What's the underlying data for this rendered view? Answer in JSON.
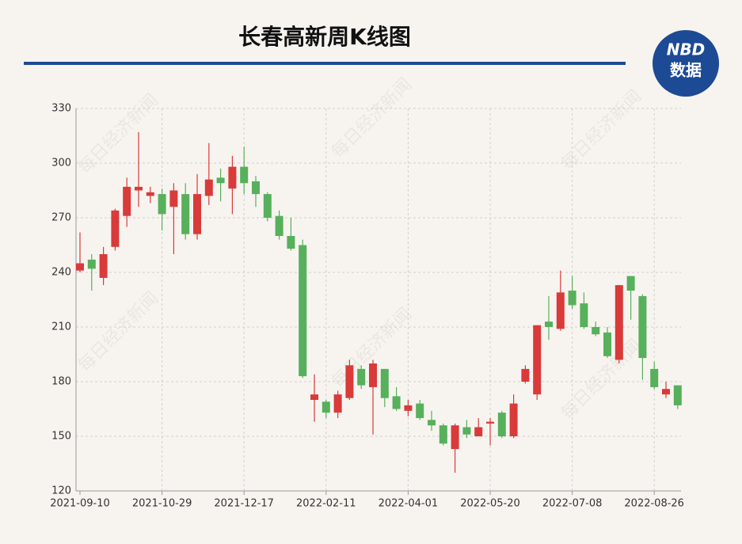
{
  "chart_data": {
    "type": "candlestick",
    "title": "长春高新周K线图",
    "logo": {
      "brand": "NBD",
      "label": "数据"
    },
    "watermark": "每日经济新闻",
    "categories": [
      "2021-09-10",
      null,
      null,
      null,
      null,
      null,
      null,
      "2021-10-29",
      null,
      null,
      null,
      null,
      null,
      null,
      "2021-12-17",
      null,
      null,
      null,
      null,
      null,
      null,
      "2022-02-11",
      null,
      null,
      null,
      null,
      null,
      null,
      "2022-04-01",
      null,
      null,
      null,
      null,
      null,
      null,
      "2022-05-20",
      null,
      null,
      null,
      null,
      null,
      null,
      "2022-07-08",
      null,
      null,
      null,
      null,
      null,
      null,
      "2022-08-26",
      null,
      null
    ],
    "open": [
      241,
      247,
      237,
      254,
      271,
      285,
      282,
      283,
      276,
      283,
      261,
      282,
      292,
      286,
      298,
      290,
      283,
      271,
      260,
      255,
      170,
      169,
      163,
      171,
      187,
      177,
      187,
      172,
      164,
      168,
      159,
      156,
      143,
      155,
      150,
      157,
      163,
      150,
      180,
      173,
      213,
      209,
      230,
      223,
      210,
      207,
      192,
      238,
      227,
      187,
      173,
      178
    ],
    "high": [
      262,
      250,
      254,
      275,
      292,
      317,
      287,
      286,
      289,
      289,
      294,
      311,
      297,
      304,
      309,
      293,
      284,
      274,
      270,
      258,
      184,
      170,
      175,
      192,
      189,
      192,
      187,
      177,
      170,
      170,
      164,
      157,
      157,
      159,
      160,
      160,
      164,
      173,
      189,
      211,
      227,
      241,
      238,
      229,
      213,
      210,
      233,
      238,
      228,
      191,
      180,
      178
    ],
    "low": [
      240,
      230,
      233,
      252,
      265,
      276,
      278,
      263,
      250,
      258,
      258,
      277,
      279,
      272,
      283,
      276,
      268,
      258,
      252,
      182,
      158,
      160,
      160,
      170,
      176,
      151,
      166,
      164,
      161,
      159,
      153,
      145,
      130,
      149,
      150,
      145,
      149,
      149,
      179,
      170,
      203,
      208,
      220,
      209,
      205,
      193,
      190,
      214,
      181,
      176,
      171,
      165
    ],
    "close": [
      245,
      242,
      250,
      274,
      287,
      287,
      284,
      272,
      285,
      261,
      283,
      291,
      289,
      298,
      289,
      283,
      270,
      260,
      253,
      183,
      173,
      163,
      173,
      189,
      178,
      190,
      171,
      165,
      167,
      160,
      156,
      146,
      156,
      151,
      155,
      158,
      150,
      168,
      187,
      211,
      210,
      229,
      222,
      210,
      206,
      194,
      233,
      230,
      193,
      177,
      176,
      167
    ],
    "up_color": "#d93a3a",
    "down_color": "#57b05b",
    "ylim": [
      120,
      330
    ],
    "yticks": [
      120,
      150,
      180,
      210,
      240,
      270,
      300,
      330
    ],
    "grid": true
  }
}
